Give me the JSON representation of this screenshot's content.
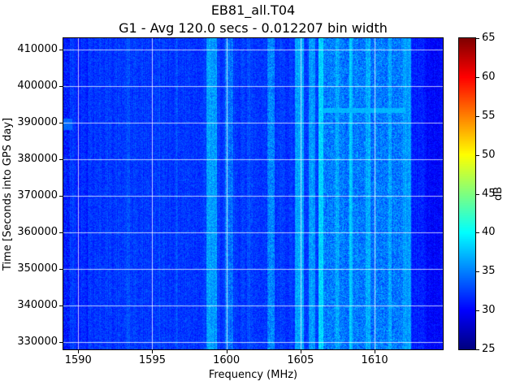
{
  "figure": {
    "title": "EB81_all.T04",
    "subtitle": "G1 - Avg 120.0 secs - 0.012207 bin width"
  },
  "chart_data": {
    "type": "heatmap",
    "title": "EB81_all.T04",
    "subtitle": "G1 - Avg 120.0 secs - 0.012207 bin width",
    "xlabel": "Frequency (MHz)",
    "ylabel": "Time [Seconds into GPS day]",
    "xlim": [
      1589.0,
      1614.6
    ],
    "ylim": [
      328000,
      413000
    ],
    "xticks": [
      1590,
      1595,
      1600,
      1605,
      1610
    ],
    "yticks": [
      330000,
      340000,
      350000,
      360000,
      370000,
      380000,
      390000,
      400000,
      410000
    ],
    "grid": true,
    "grid_color": "#ffffff",
    "colorbar": {
      "label": "dB",
      "min": 25,
      "max": 65,
      "ticks": [
        25,
        30,
        35,
        40,
        45,
        50,
        55,
        60,
        65
      ],
      "colormap": "jet"
    },
    "base_db": 32.2,
    "noise_db": 1.4,
    "bands": [
      {
        "f0": 1589.0,
        "f1": 1589.45,
        "db": 31.0,
        "noise": 2.0
      },
      {
        "f0": 1589.9,
        "f1": 1590.15,
        "db": 30.8
      },
      {
        "f0": 1590.5,
        "f1": 1590.65,
        "db": 31.2
      },
      {
        "f0": 1593.3,
        "f1": 1593.5,
        "db": 33.2
      },
      {
        "f0": 1595.4,
        "f1": 1595.55,
        "db": 33.0
      },
      {
        "f0": 1596.6,
        "f1": 1596.75,
        "db": 33.2
      },
      {
        "f0": 1598.65,
        "f1": 1599.35,
        "db": 36.2,
        "noise": 1.8
      },
      {
        "f0": 1599.9,
        "f1": 1600.45,
        "db": 34.3,
        "noise": 2.2
      },
      {
        "f0": 1601.4,
        "f1": 1601.6,
        "db": 33.4
      },
      {
        "f0": 1602.75,
        "f1": 1603.25,
        "db": 35.3,
        "noise": 2.2
      },
      {
        "f0": 1604.65,
        "f1": 1605.2,
        "db": 36.3,
        "noise": 1.8
      },
      {
        "f0": 1605.55,
        "f1": 1606.0,
        "db": 35.8,
        "noise": 1.8
      },
      {
        "f0": 1606.2,
        "f1": 1606.55,
        "db": 38.3,
        "noise": 1.5
      },
      {
        "f0": 1606.55,
        "f1": 1611.9,
        "db": 34.8,
        "noise": 2.4
      },
      {
        "f0": 1607.35,
        "f1": 1607.6,
        "db": 36.8,
        "noise": 1.8
      },
      {
        "f0": 1608.3,
        "f1": 1608.5,
        "db": 38.0,
        "noise": 1.2
      },
      {
        "f0": 1609.4,
        "f1": 1609.7,
        "db": 36.8,
        "noise": 1.8
      },
      {
        "f0": 1610.9,
        "f1": 1611.15,
        "db": 36.4,
        "noise": 1.8
      },
      {
        "f0": 1611.9,
        "f1": 1612.45,
        "db": 36.2,
        "noise": 1.6
      },
      {
        "f0": 1612.45,
        "f1": 1613.4,
        "db": 31.3
      },
      {
        "f0": 1613.4,
        "f1": 1614.6,
        "db": 30.2
      }
    ],
    "patches": [
      {
        "f0": 1606.5,
        "f1": 1612.0,
        "t0": 392500,
        "t1": 393900,
        "db": 37.2
      },
      {
        "f0": 1589.0,
        "f1": 1589.6,
        "t0": 388000,
        "t1": 391000,
        "db": 34.0
      }
    ]
  }
}
